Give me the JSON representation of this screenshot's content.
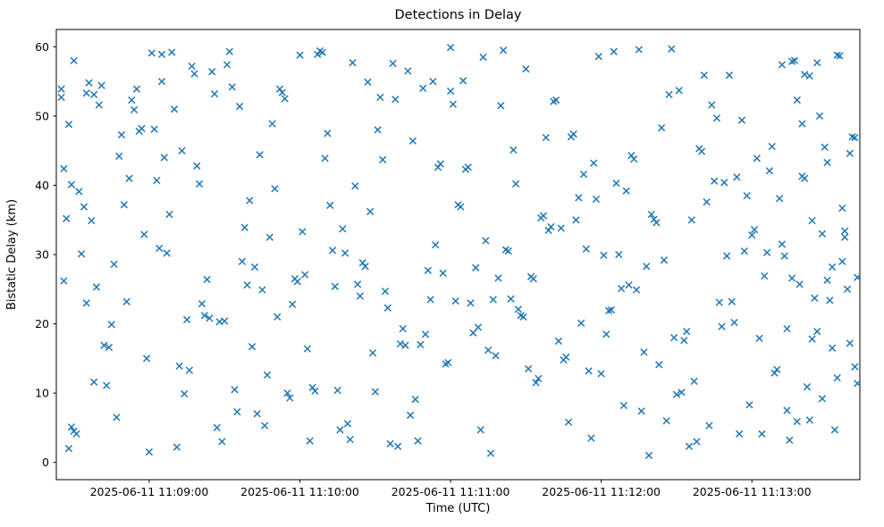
{
  "accent_color": "#1f77b4",
  "chart_data": {
    "type": "scatter",
    "title": "Detections in Delay",
    "xlabel": "Time (UTC)",
    "ylabel": "Bistatic Delay (km)",
    "marker": "x",
    "marker_color": "#1f77b4",
    "legend": "none",
    "grid": false,
    "x_unit": "seconds since 2025-06-11 11:08:00 UTC",
    "xlim": [
      23,
      343
    ],
    "ylim": [
      -2.5,
      62.5
    ],
    "x_ticks": [
      {
        "t": 60,
        "label": "2025-06-11 11:09:00"
      },
      {
        "t": 120,
        "label": "2025-06-11 11:10:00"
      },
      {
        "t": 180,
        "label": "2025-06-11 11:11:00"
      },
      {
        "t": 240,
        "label": "2025-06-11 11:12:00"
      },
      {
        "t": 300,
        "label": "2025-06-11 11:13:00"
      }
    ],
    "y_ticks": [
      0,
      10,
      20,
      30,
      40,
      50,
      60
    ],
    "points": [
      [
        25,
        52.7
      ],
      [
        25,
        53.9
      ],
      [
        26,
        26.2
      ],
      [
        26,
        42.4
      ],
      [
        27,
        35.2
      ],
      [
        28,
        2.0
      ],
      [
        28,
        48.8
      ],
      [
        29,
        40.1
      ],
      [
        29,
        5.1
      ],
      [
        30,
        4.5
      ],
      [
        30,
        58.0
      ],
      [
        31,
        4.1
      ],
      [
        32,
        39.1
      ],
      [
        33,
        30.1
      ],
      [
        34,
        36.9
      ],
      [
        35,
        23.0
      ],
      [
        35,
        53.3
      ],
      [
        36,
        54.8
      ],
      [
        37,
        34.9
      ],
      [
        38,
        11.6
      ],
      [
        38,
        53.1
      ],
      [
        39,
        25.3
      ],
      [
        40,
        51.6
      ],
      [
        41,
        54.4
      ],
      [
        42,
        16.9
      ],
      [
        43,
        11.1
      ],
      [
        44,
        16.6
      ],
      [
        45,
        19.9
      ],
      [
        46,
        28.6
      ],
      [
        47,
        6.5
      ],
      [
        48,
        44.2
      ],
      [
        49,
        47.3
      ],
      [
        50,
        37.2
      ],
      [
        51,
        23.2
      ],
      [
        52,
        41.0
      ],
      [
        53,
        52.3
      ],
      [
        54,
        50.9
      ],
      [
        55,
        53.9
      ],
      [
        56,
        47.8
      ],
      [
        57,
        48.2
      ],
      [
        58,
        32.9
      ],
      [
        59,
        15.0
      ],
      [
        60,
        1.5
      ],
      [
        61,
        59.1
      ],
      [
        62,
        48.1
      ],
      [
        63,
        40.7
      ],
      [
        64,
        30.9
      ],
      [
        65,
        58.9
      ],
      [
        65,
        55.0
      ],
      [
        66,
        44.0
      ],
      [
        67,
        30.2
      ],
      [
        68,
        35.8
      ],
      [
        69,
        59.2
      ],
      [
        70,
        51.0
      ],
      [
        71,
        2.2
      ],
      [
        72,
        13.9
      ],
      [
        73,
        45.0
      ],
      [
        74,
        9.9
      ],
      [
        75,
        20.6
      ],
      [
        76,
        13.3
      ],
      [
        77,
        57.2
      ],
      [
        78,
        56.1
      ],
      [
        79,
        42.8
      ],
      [
        80,
        40.2
      ],
      [
        81,
        22.9
      ],
      [
        82,
        21.2
      ],
      [
        83,
        26.4
      ],
      [
        84,
        20.8
      ],
      [
        85,
        56.4
      ],
      [
        86,
        53.2
      ],
      [
        87,
        5.0
      ],
      [
        88,
        20.3
      ],
      [
        89,
        3.0
      ],
      [
        90,
        20.4
      ],
      [
        91,
        57.4
      ],
      [
        92,
        59.3
      ],
      [
        93,
        54.2
      ],
      [
        94,
        10.5
      ],
      [
        95,
        7.3
      ],
      [
        96,
        51.4
      ],
      [
        97,
        29.0
      ],
      [
        98,
        33.9
      ],
      [
        99,
        25.6
      ],
      [
        100,
        37.8
      ],
      [
        101,
        16.7
      ],
      [
        102,
        28.2
      ],
      [
        103,
        7.0
      ],
      [
        104,
        44.4
      ],
      [
        105,
        24.9
      ],
      [
        106,
        5.3
      ],
      [
        107,
        12.6
      ],
      [
        108,
        32.5
      ],
      [
        109,
        48.9
      ],
      [
        110,
        39.5
      ],
      [
        111,
        21.0
      ],
      [
        112,
        53.9
      ],
      [
        113,
        53.4
      ],
      [
        114,
        52.5
      ],
      [
        115,
        10.0
      ],
      [
        116,
        9.3
      ],
      [
        117,
        22.8
      ],
      [
        118,
        26.5
      ],
      [
        119,
        26.1
      ],
      [
        120,
        58.8
      ],
      [
        121,
        33.3
      ],
      [
        122,
        27.1
      ],
      [
        123,
        16.4
      ],
      [
        124,
        3.1
      ],
      [
        125,
        10.8
      ],
      [
        126,
        10.3
      ],
      [
        127,
        58.9
      ],
      [
        128,
        59.4
      ],
      [
        129,
        59.2
      ],
      [
        130,
        43.9
      ],
      [
        131,
        47.5
      ],
      [
        132,
        37.1
      ],
      [
        133,
        30.6
      ],
      [
        134,
        25.4
      ],
      [
        135,
        10.4
      ],
      [
        136,
        4.7
      ],
      [
        137,
        33.7
      ],
      [
        138,
        30.2
      ],
      [
        139,
        5.6
      ],
      [
        140,
        3.3
      ],
      [
        141,
        57.7
      ],
      [
        142,
        39.9
      ],
      [
        143,
        25.7
      ],
      [
        144,
        24.0
      ],
      [
        145,
        28.8
      ],
      [
        146,
        28.3
      ],
      [
        147,
        54.9
      ],
      [
        148,
        36.2
      ],
      [
        149,
        15.8
      ],
      [
        150,
        10.2
      ],
      [
        151,
        48.0
      ],
      [
        152,
        52.7
      ],
      [
        153,
        43.7
      ],
      [
        154,
        24.7
      ],
      [
        155,
        22.3
      ],
      [
        156,
        2.7
      ],
      [
        157,
        57.6
      ],
      [
        158,
        52.4
      ],
      [
        159,
        2.3
      ],
      [
        160,
        17.1
      ],
      [
        161,
        19.3
      ],
      [
        162,
        16.9
      ],
      [
        163,
        56.5
      ],
      [
        164,
        6.8
      ],
      [
        165,
        46.4
      ],
      [
        166,
        9.1
      ],
      [
        167,
        3.1
      ],
      [
        168,
        17.0
      ],
      [
        169,
        54.0
      ],
      [
        170,
        18.5
      ],
      [
        171,
        27.7
      ],
      [
        172,
        23.5
      ],
      [
        173,
        55.0
      ],
      [
        174,
        31.4
      ],
      [
        175,
        42.6
      ],
      [
        176,
        43.1
      ],
      [
        177,
        27.3
      ],
      [
        178,
        14.2
      ],
      [
        179,
        14.4
      ],
      [
        180,
        59.9
      ],
      [
        180,
        53.6
      ],
      [
        181,
        51.7
      ],
      [
        182,
        23.3
      ],
      [
        183,
        37.2
      ],
      [
        184,
        36.9
      ],
      [
        185,
        55.1
      ],
      [
        186,
        42.3
      ],
      [
        187,
        42.6
      ],
      [
        188,
        23.0
      ],
      [
        189,
        18.7
      ],
      [
        190,
        28.1
      ],
      [
        191,
        19.5
      ],
      [
        192,
        4.7
      ],
      [
        193,
        58.5
      ],
      [
        194,
        32.0
      ],
      [
        195,
        16.2
      ],
      [
        196,
        1.3
      ],
      [
        197,
        23.5
      ],
      [
        198,
        15.4
      ],
      [
        199,
        26.6
      ],
      [
        200,
        51.5
      ],
      [
        201,
        59.5
      ],
      [
        202,
        30.7
      ],
      [
        203,
        30.5
      ],
      [
        204,
        23.6
      ],
      [
        205,
        45.1
      ],
      [
        206,
        40.2
      ],
      [
        207,
        22.1
      ],
      [
        208,
        21.2
      ],
      [
        209,
        21.0
      ],
      [
        210,
        56.8
      ],
      [
        211,
        13.5
      ],
      [
        212,
        26.8
      ],
      [
        213,
        26.5
      ],
      [
        214,
        11.5
      ],
      [
        215,
        12.1
      ],
      [
        216,
        35.3
      ],
      [
        217,
        35.6
      ],
      [
        218,
        46.9
      ],
      [
        219,
        33.5
      ],
      [
        220,
        34.0
      ],
      [
        221,
        52.1
      ],
      [
        222,
        52.3
      ],
      [
        223,
        17.5
      ],
      [
        224,
        33.8
      ],
      [
        225,
        14.8
      ],
      [
        226,
        15.2
      ],
      [
        227,
        5.8
      ],
      [
        228,
        47.0
      ],
      [
        229,
        47.4
      ],
      [
        230,
        35.0
      ],
      [
        231,
        38.2
      ],
      [
        232,
        20.1
      ],
      [
        233,
        41.6
      ],
      [
        234,
        30.8
      ],
      [
        235,
        13.2
      ],
      [
        236,
        3.5
      ],
      [
        237,
        43.2
      ],
      [
        238,
        38.0
      ],
      [
        239,
        58.6
      ],
      [
        240,
        12.8
      ],
      [
        241,
        29.9
      ],
      [
        242,
        18.5
      ],
      [
        243,
        21.9
      ],
      [
        244,
        22.0
      ],
      [
        245,
        59.3
      ],
      [
        246,
        40.3
      ],
      [
        247,
        30.0
      ],
      [
        248,
        25.1
      ],
      [
        249,
        8.2
      ],
      [
        250,
        39.2
      ],
      [
        251,
        25.6
      ],
      [
        252,
        44.3
      ],
      [
        253,
        43.8
      ],
      [
        254,
        24.9
      ],
      [
        255,
        59.6
      ],
      [
        256,
        7.4
      ],
      [
        257,
        15.9
      ],
      [
        258,
        28.3
      ],
      [
        259,
        1.0
      ],
      [
        260,
        35.8
      ],
      [
        261,
        35.1
      ],
      [
        262,
        34.6
      ],
      [
        263,
        14.1
      ],
      [
        264,
        48.3
      ],
      [
        265,
        29.2
      ],
      [
        266,
        6.0
      ],
      [
        267,
        53.1
      ],
      [
        268,
        59.7
      ],
      [
        269,
        18.0
      ],
      [
        270,
        9.8
      ],
      [
        271,
        53.7
      ],
      [
        272,
        10.1
      ],
      [
        273,
        17.6
      ],
      [
        274,
        18.9
      ],
      [
        275,
        2.3
      ],
      [
        276,
        35.0
      ],
      [
        277,
        11.7
      ],
      [
        278,
        3.0
      ],
      [
        279,
        45.3
      ],
      [
        280,
        44.9
      ],
      [
        281,
        55.9
      ],
      [
        282,
        37.6
      ],
      [
        283,
        5.3
      ],
      [
        284,
        51.6
      ],
      [
        285,
        40.6
      ],
      [
        286,
        49.7
      ],
      [
        287,
        23.1
      ],
      [
        288,
        19.6
      ],
      [
        289,
        40.4
      ],
      [
        290,
        29.8
      ],
      [
        291,
        55.9
      ],
      [
        292,
        23.2
      ],
      [
        293,
        20.2
      ],
      [
        294,
        41.2
      ],
      [
        295,
        4.1
      ],
      [
        296,
        49.4
      ],
      [
        297,
        30.5
      ],
      [
        298,
        38.5
      ],
      [
        299,
        8.3
      ],
      [
        300,
        32.8
      ],
      [
        301,
        33.6
      ],
      [
        302,
        43.9
      ],
      [
        303,
        17.9
      ],
      [
        304,
        4.1
      ],
      [
        305,
        26.9
      ],
      [
        306,
        30.3
      ],
      [
        307,
        42.1
      ],
      [
        308,
        45.6
      ],
      [
        309,
        12.9
      ],
      [
        310,
        13.4
      ],
      [
        311,
        38.1
      ],
      [
        312,
        57.4
      ],
      [
        313,
        29.8
      ],
      [
        314,
        19.3
      ],
      [
        315,
        3.2
      ],
      [
        316,
        57.9
      ],
      [
        317,
        58.0
      ],
      [
        318,
        5.9
      ],
      [
        319,
        25.7
      ],
      [
        320,
        41.3
      ],
      [
        321,
        41.0
      ],
      [
        322,
        10.9
      ],
      [
        323,
        6.1
      ],
      [
        324,
        34.9
      ],
      [
        325,
        23.7
      ],
      [
        326,
        57.7
      ],
      [
        327,
        50.0
      ],
      [
        328,
        9.2
      ],
      [
        329,
        45.5
      ],
      [
        330,
        43.3
      ],
      [
        331,
        23.4
      ],
      [
        332,
        28.2
      ],
      [
        333,
        4.7
      ],
      [
        334,
        58.8
      ],
      [
        335,
        58.7
      ],
      [
        336,
        36.7
      ],
      [
        337,
        32.5
      ],
      [
        338,
        25.0
      ],
      [
        339,
        17.2
      ],
      [
        340,
        47.0
      ],
      [
        341,
        46.9
      ],
      [
        341,
        13.8
      ],
      [
        342,
        26.7
      ],
      [
        342,
        11.4
      ],
      [
        339,
        44.6
      ],
      [
        337,
        33.4
      ],
      [
        336,
        29.0
      ],
      [
        334,
        12.2
      ],
      [
        332,
        16.5
      ],
      [
        330,
        26.3
      ],
      [
        328,
        33.0
      ],
      [
        326,
        18.9
      ],
      [
        324,
        17.8
      ],
      [
        323,
        55.8
      ],
      [
        321,
        56.0
      ],
      [
        320,
        48.9
      ],
      [
        318,
        52.3
      ],
      [
        316,
        26.6
      ],
      [
        314,
        7.5
      ],
      [
        312,
        31.5
      ]
    ]
  }
}
